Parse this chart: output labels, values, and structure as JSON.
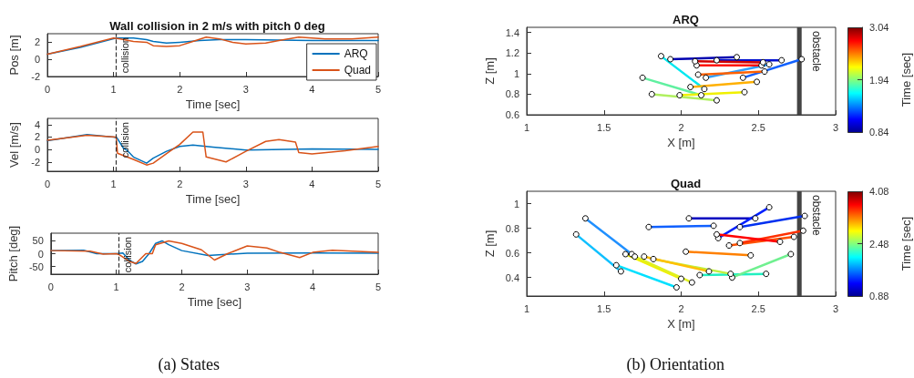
{
  "chart_data": [
    {
      "type": "line",
      "title": "Wall collision in 2 m/s with pitch 0 deg",
      "xlabel": "Time [sec]",
      "ylabel": "Pos [m]",
      "xlim": [
        0,
        5
      ],
      "xticks": [
        0,
        1,
        2,
        3,
        4,
        5
      ],
      "ylim": [
        -2,
        3
      ],
      "yticks": [
        -2,
        0,
        2
      ],
      "legend": "bottom right",
      "marker": "none",
      "ref_lines": [
        {
          "axis": "x",
          "value": 1.04,
          "label": "collision",
          "line_style": "dashed",
          "color": "#333333"
        }
      ],
      "series": [
        {
          "name": "ARQ",
          "color": "#0072bd",
          "x": [
            0,
            0.5,
            1,
            1.05,
            1.3,
            1.5,
            1.6,
            1.8,
            2,
            2.3,
            2.6,
            3,
            4,
            5
          ],
          "values": [
            0.6,
            1.4,
            2.4,
            2.5,
            2.5,
            2.3,
            2.1,
            1.9,
            2.0,
            2.2,
            2.3,
            2.3,
            2.2,
            2.2
          ]
        },
        {
          "name": "Quad",
          "color": "#d95319",
          "x": [
            0,
            0.5,
            1,
            1.1,
            1.3,
            1.5,
            1.6,
            1.8,
            2,
            2.2,
            2.4,
            2.6,
            2.8,
            3,
            3.3,
            3.5,
            3.8,
            4.2,
            4.6,
            5
          ],
          "values": [
            0.6,
            1.5,
            2.5,
            2.4,
            2.1,
            2.0,
            1.6,
            1.5,
            1.6,
            2.1,
            2.6,
            2.4,
            2.0,
            1.8,
            1.9,
            2.2,
            2.6,
            2.4,
            2.4,
            2.6
          ]
        }
      ]
    },
    {
      "type": "line",
      "xlabel": "Time [sec]",
      "ylabel": "Vel [m/s]",
      "xlim": [
        0,
        5
      ],
      "xticks": [
        0,
        1,
        2,
        3,
        4,
        5
      ],
      "ylim": [
        -3.5,
        5
      ],
      "yticks": [
        -2,
        0,
        2,
        4
      ],
      "marker": "none",
      "ref_lines": [
        {
          "axis": "x",
          "value": 1.04,
          "label": "collision",
          "line_style": "dashed",
          "color": "#333333"
        }
      ],
      "series": [
        {
          "color": "#0072bd",
          "x": [
            0,
            0.6,
            1,
            1.05,
            1.15,
            1.2,
            1.3,
            1.5,
            1.6,
            1.8,
            2,
            2.2,
            2.5,
            3,
            4,
            5
          ],
          "values": [
            1.4,
            2.4,
            2.0,
            1.9,
            0.2,
            -0.1,
            -1.2,
            -2.2,
            -1.4,
            -0.3,
            0.5,
            0.7,
            0.4,
            -0.1,
            0.1,
            0
          ]
        },
        {
          "color": "#d95319",
          "x": [
            0,
            0.6,
            1.04,
            1.06,
            1.3,
            1.5,
            1.6,
            1.85,
            2,
            2.2,
            2.35,
            2.4,
            2.7,
            3,
            3.3,
            3.5,
            3.75,
            3.8,
            4,
            4.5,
            5
          ],
          "values": [
            1.5,
            2.3,
            2.0,
            -0.6,
            -1.6,
            -2.5,
            -2.2,
            -0.3,
            0.8,
            2.8,
            2.8,
            -1.2,
            -2,
            -0.3,
            1.3,
            1.6,
            1.2,
            -0.5,
            -0.7,
            -0.2,
            0.5
          ]
        }
      ]
    },
    {
      "type": "line",
      "xlabel": "Time [sec]",
      "ylabel": "Pitch [deg]",
      "xlim": [
        0,
        5
      ],
      "xticks": [
        0,
        1,
        2,
        3,
        4,
        5
      ],
      "ylim": [
        -80,
        80
      ],
      "yticks": [
        -50,
        0,
        50
      ],
      "marker": "none",
      "annotations": [
        "(a) States"
      ],
      "ref_lines": [
        {
          "axis": "x",
          "value": 1.04,
          "label": "collision",
          "line_style": "dashed",
          "color": "#333333"
        }
      ],
      "series": [
        {
          "color": "#0072bd",
          "x": [
            0,
            0.5,
            0.7,
            1,
            1.1,
            1.2,
            1.3,
            1.4,
            1.5,
            1.6,
            1.7,
            1.8,
            2,
            2.4,
            3,
            4,
            5
          ],
          "values": [
            12,
            13,
            0,
            0,
            3,
            -25,
            -40,
            -30,
            0,
            40,
            50,
            35,
            12,
            -7,
            2,
            3,
            2
          ]
        },
        {
          "color": "#d95319",
          "x": [
            0,
            0.6,
            0.8,
            1,
            1.05,
            1.2,
            1.3,
            1.45,
            1.55,
            1.6,
            1.8,
            2,
            2.3,
            2.5,
            2.7,
            3,
            3.3,
            3.5,
            3.8,
            4,
            4.3,
            5
          ],
          "values": [
            12,
            10,
            -2,
            0,
            -5,
            -30,
            -38,
            0,
            0,
            35,
            50,
            40,
            15,
            -25,
            0,
            30,
            22,
            5,
            -15,
            5,
            13,
            5
          ]
        }
      ]
    },
    {
      "type": "line",
      "title": "ARQ",
      "xlabel": "X [m]",
      "ylabel": "Z [m]",
      "xlim": [
        1,
        3
      ],
      "xticks": [
        1,
        1.5,
        2,
        2.5,
        3
      ],
      "ylim": [
        0.6,
        1.45
      ],
      "yticks": [
        0.6,
        0.8,
        1,
        1.2,
        1.4
      ],
      "marker": "circle",
      "clabel": "Time [sec]",
      "clim": [
        0.84,
        3.04
      ],
      "cticks": [
        0.84,
        1.94,
        3.04
      ],
      "bands": [
        {
          "axis": "x",
          "from": 2.75,
          "to": 2.78,
          "label": "obstacle",
          "color": "#444444"
        }
      ],
      "series": [
        {
          "color": "#0000b0",
          "x": [
            1.93,
            2.36
          ],
          "values": [
            1.14,
            1.16
          ]
        },
        {
          "color": "#0010d0",
          "x": [
            2.23,
            2.65
          ],
          "values": [
            1.13,
            1.13
          ]
        },
        {
          "color": "#1060ff",
          "x": [
            2.4,
            2.78
          ],
          "values": [
            0.96,
            1.14
          ]
        },
        {
          "color": "#30a0ff",
          "x": [
            2.16,
            2.57
          ],
          "values": [
            0.96,
            1.09
          ]
        },
        {
          "color": "#00e8f0",
          "x": [
            1.87,
            2.15
          ],
          "values": [
            1.17,
            0.85
          ]
        },
        {
          "color": "#60f0a0",
          "x": [
            1.75,
            2.13
          ],
          "values": [
            0.96,
            0.79
          ]
        },
        {
          "color": "#b0f060",
          "x": [
            1.81,
            2.23
          ],
          "values": [
            0.8,
            0.74
          ]
        },
        {
          "color": "#f0f000",
          "x": [
            1.99,
            2.41
          ],
          "values": [
            0.79,
            0.82
          ]
        },
        {
          "color": "#ffb000",
          "x": [
            2.06,
            2.49
          ],
          "values": [
            0.87,
            0.92
          ]
        },
        {
          "color": "#ff6000",
          "x": [
            2.11,
            2.54
          ],
          "values": [
            0.99,
            1.02
          ]
        },
        {
          "color": "#ff1000",
          "x": [
            2.1,
            2.52
          ],
          "values": [
            1.08,
            1.08
          ]
        },
        {
          "color": "#d00000",
          "x": [
            2.09,
            2.53
          ],
          "values": [
            1.12,
            1.11
          ]
        }
      ]
    },
    {
      "type": "line",
      "title": "Quad",
      "xlabel": "X [m]",
      "ylabel": "Z [m]",
      "xlim": [
        1,
        3
      ],
      "xticks": [
        1,
        1.5,
        2,
        2.5,
        3
      ],
      "ylim": [
        0.25,
        1.1
      ],
      "yticks": [
        0.4,
        0.6,
        0.8,
        1
      ],
      "marker": "circle",
      "clabel": "Time [sec]",
      "clim": [
        0.88,
        4.08
      ],
      "cticks": [
        0.88,
        2.48,
        4.08
      ],
      "annotations": [
        "(b) Orientation"
      ],
      "bands": [
        {
          "axis": "x",
          "from": 2.75,
          "to": 2.78,
          "label": "obstacle",
          "color": "#444444"
        }
      ],
      "series": [
        {
          "color": "#0000c0",
          "x": [
            2.05,
            2.48
          ],
          "values": [
            0.88,
            0.88
          ]
        },
        {
          "color": "#0020ff",
          "x": [
            2.24,
            2.57
          ],
          "values": [
            0.72,
            0.97
          ]
        },
        {
          "color": "#0030f0",
          "x": [
            2.38,
            2.8
          ],
          "values": [
            0.81,
            0.9
          ]
        },
        {
          "color": "#1060ff",
          "x": [
            1.79,
            2.21
          ],
          "values": [
            0.81,
            0.82
          ]
        },
        {
          "color": "#2090ff",
          "x": [
            1.38,
            1.68
          ],
          "values": [
            0.88,
            0.59
          ]
        },
        {
          "color": "#10c0ff",
          "x": [
            1.32,
            1.61
          ],
          "values": [
            0.75,
            0.45
          ]
        },
        {
          "color": "#00e0ff",
          "x": [
            1.58,
            1.97
          ],
          "values": [
            0.5,
            0.32
          ]
        },
        {
          "color": "#20f0c0",
          "x": [
            2.12,
            2.55
          ],
          "values": [
            0.42,
            0.43
          ]
        },
        {
          "color": "#70f090",
          "x": [
            2.33,
            2.71
          ],
          "values": [
            0.4,
            0.59
          ]
        },
        {
          "color": "#c0f040",
          "x": [
            1.82,
            2.32
          ],
          "values": [
            0.55,
            0.43
          ]
        },
        {
          "color": "#f0f000",
          "x": [
            1.64,
            2.0
          ],
          "values": [
            0.59,
            0.39
          ]
        },
        {
          "color": "#e0f020",
          "x": [
            1.7,
            2.07
          ],
          "values": [
            0.57,
            0.36
          ]
        },
        {
          "color": "#ffc000",
          "x": [
            1.76,
            2.18
          ],
          "values": [
            0.57,
            0.45
          ]
        },
        {
          "color": "#ff8000",
          "x": [
            2.03,
            2.45
          ],
          "values": [
            0.61,
            0.58
          ]
        },
        {
          "color": "#ff5000",
          "x": [
            2.31,
            2.73
          ],
          "values": [
            0.66,
            0.73
          ]
        },
        {
          "color": "#ff3000",
          "x": [
            2.38,
            2.79
          ],
          "values": [
            0.68,
            0.78
          ]
        },
        {
          "color": "#ff0000",
          "x": [
            2.23,
            2.64
          ],
          "values": [
            0.75,
            0.69
          ]
        }
      ]
    }
  ]
}
